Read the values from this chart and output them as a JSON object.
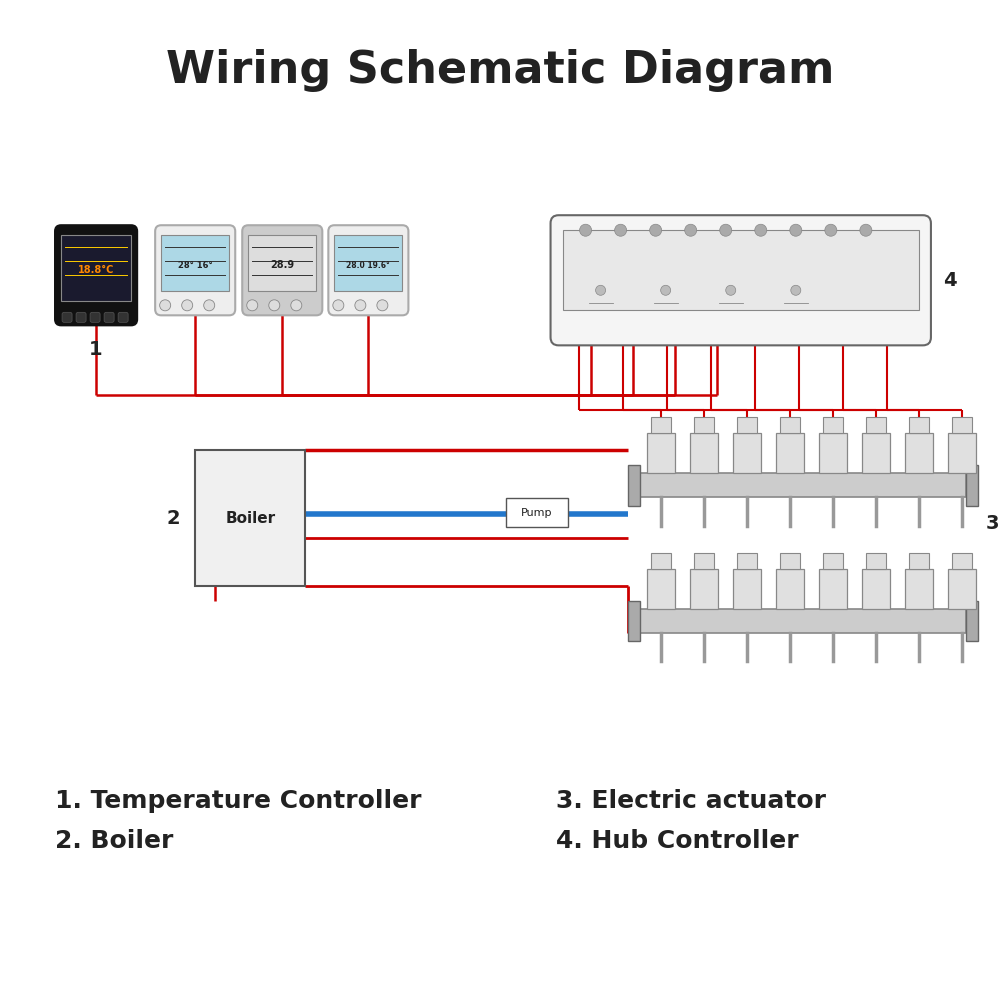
{
  "title": "Wiring Schematic Diagram",
  "title_fontsize": 32,
  "title_fontweight": "bold",
  "title_color": "#222222",
  "background_color": "#ffffff",
  "labels": {
    "label1": "1. Temperature Controller",
    "label2": "2. Boiler",
    "label3": "3. Electric actuator",
    "label4": "4. Hub Controller"
  },
  "label_fontsize": 18,
  "label_fontweight": "bold",
  "label_color": "#222222",
  "wire_red": "#cc0000",
  "wire_blue": "#2277cc",
  "boiler_label": "Boiler",
  "pump_label": "Pump",
  "num_controllers": 4,
  "num_channels": 8
}
